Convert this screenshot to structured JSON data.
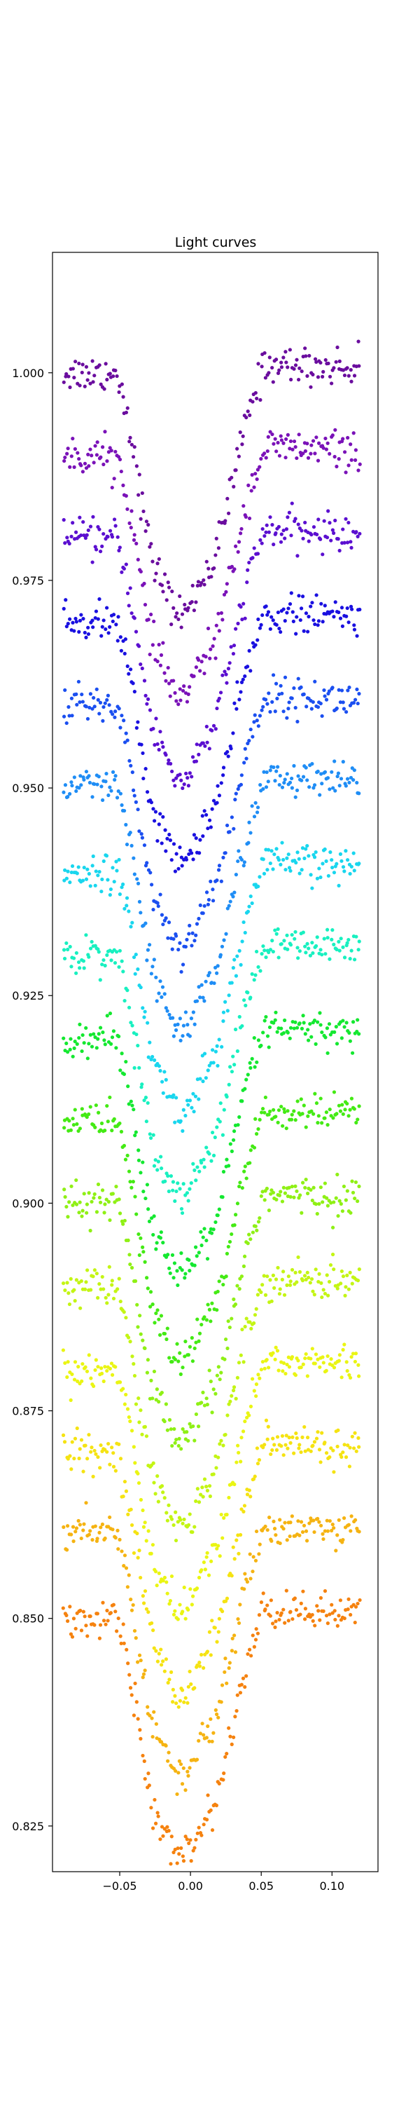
{
  "chart_data": {
    "type": "scatter",
    "title": "Light curves",
    "xlabel": "",
    "ylabel": "",
    "xlim": [
      -0.0975,
      0.1325
    ],
    "ylim": [
      0.8195,
      1.0145
    ],
    "x_ticks": [
      -0.05,
      0.0,
      0.05,
      0.1
    ],
    "x_tick_labels": [
      "−0.05",
      "0.00",
      "0.05",
      "0.10"
    ],
    "y_ticks": [
      0.825,
      0.85,
      0.875,
      0.9,
      0.925,
      0.95,
      0.975,
      1.0
    ],
    "y_tick_labels": [
      "0.825",
      "0.850",
      "0.875",
      "0.900",
      "0.925",
      "0.950",
      "0.975",
      "1.000"
    ],
    "grid": false,
    "transit_model": {
      "x_start": -0.09,
      "x_end": 0.12,
      "points_per_curve": 200,
      "depth": 0.029,
      "center": -0.007,
      "ingress_start": -0.055,
      "bottom_start": -0.02,
      "bottom_end": 0.007,
      "egress_end": 0.055,
      "post_transit_bump": 0.001,
      "post_transit_slope": -0.025,
      "noise": 0.0011
    },
    "series": [
      {
        "baseline": 1.0,
        "color": "#6a0d9e"
      },
      {
        "baseline": 0.99,
        "color": "#7a12b8"
      },
      {
        "baseline": 0.98,
        "color": "#5b0fd0"
      },
      {
        "baseline": 0.97,
        "color": "#1a10e0"
      },
      {
        "baseline": 0.96,
        "color": "#1b4ff0"
      },
      {
        "baseline": 0.95,
        "color": "#1f8df5"
      },
      {
        "baseline": 0.94,
        "color": "#19d6ee"
      },
      {
        "baseline": 0.93,
        "color": "#18f0c0"
      },
      {
        "baseline": 0.92,
        "color": "#14e830"
      },
      {
        "baseline": 0.91,
        "color": "#44ea14"
      },
      {
        "baseline": 0.9,
        "color": "#8ff015"
      },
      {
        "baseline": 0.89,
        "color": "#c4f514"
      },
      {
        "baseline": 0.88,
        "color": "#eaf513"
      },
      {
        "baseline": 0.87,
        "color": "#f5e312"
      },
      {
        "baseline": 0.86,
        "color": "#f5b312"
      },
      {
        "baseline": 0.85,
        "color": "#f5820f"
      }
    ]
  }
}
